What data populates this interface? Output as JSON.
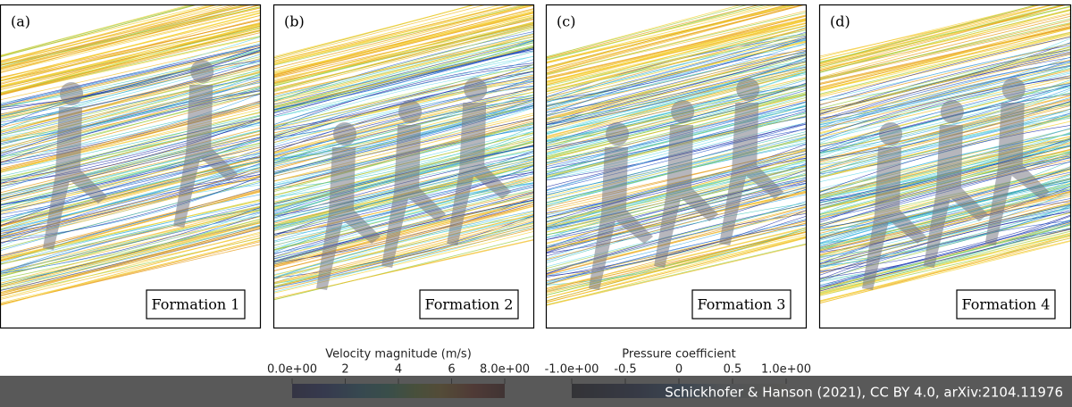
{
  "panels": [
    {
      "label": "(a)",
      "caption": "Formation 1"
    },
    {
      "label": "(b)",
      "caption": "Formation 2"
    },
    {
      "label": "(c)",
      "caption": "Formation 3"
    },
    {
      "label": "(d)",
      "caption": "Formation 4"
    }
  ],
  "colorbars": [
    {
      "title": "Velocity magnitude (m/s)",
      "lim": [
        0,
        8
      ],
      "ticks": [
        {
          "value": 0,
          "label": "0.0e+00"
        },
        2,
        4,
        6,
        {
          "value": 8,
          "label": "8.0e+00"
        }
      ]
    },
    {
      "title": "Pressure coefficient",
      "lim": [
        -1,
        1
      ],
      "ticks": [
        {
          "value": -1,
          "label": "-1.0e+00"
        },
        -0.5,
        0,
        0.5,
        {
          "value": 1,
          "label": "1.0e+00"
        }
      ]
    }
  ],
  "credit": "Schickhofer & Hanson (2021), CC BY 4.0, arXiv:2104.11976"
}
